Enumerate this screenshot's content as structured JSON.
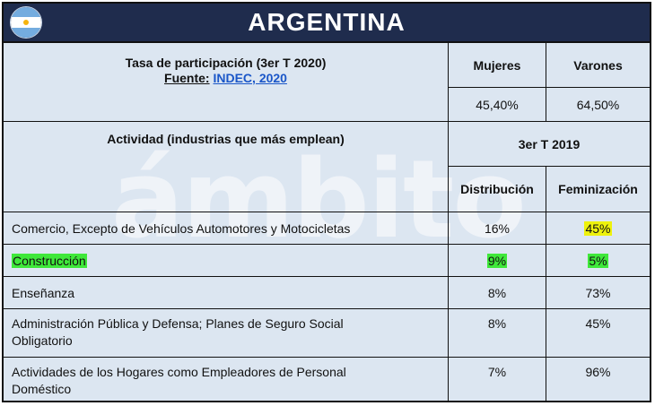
{
  "title": "ARGENTINA",
  "participation": {
    "heading": "Tasa de participación (3er T 2020)",
    "source_label": "Fuente:",
    "source_link": "INDEC, 2020",
    "col_women": "Mujeres",
    "col_men": "Varones",
    "women_value": "45,40%",
    "men_value": "64,50%"
  },
  "activity": {
    "heading": "Actividad (industrias que más emplean)",
    "period": "3er T 2019",
    "col_distribution": "Distribución",
    "col_feminization": "Feminización"
  },
  "rows": [
    {
      "activity": "Comercio, Excepto de Vehículos Automotores y Motocicletas",
      "distribution": "16%",
      "feminization": "45%"
    },
    {
      "activity": "Construcción",
      "distribution": "9%",
      "feminization": "5%"
    },
    {
      "activity": "Enseñanza",
      "distribution": "8%",
      "feminization": "73%"
    },
    {
      "activity_line1": "Administración Pública y Defensa; Planes de Seguro Social",
      "activity_line2": "Obligatorio",
      "distribution": "8%",
      "feminization": "45%"
    },
    {
      "activity_line1": "Actividades de los Hogares como Empleadores de Personal",
      "activity_line2": "Doméstico",
      "distribution": "7%",
      "feminization": "96%"
    }
  ],
  "watermark": "ámbito",
  "colors": {
    "header_bg": "#1f2c4d",
    "table_bg": "#dce6f1",
    "highlight_yellow": "#eef20c",
    "highlight_green": "#3fe83a",
    "link": "#1a56c8"
  }
}
